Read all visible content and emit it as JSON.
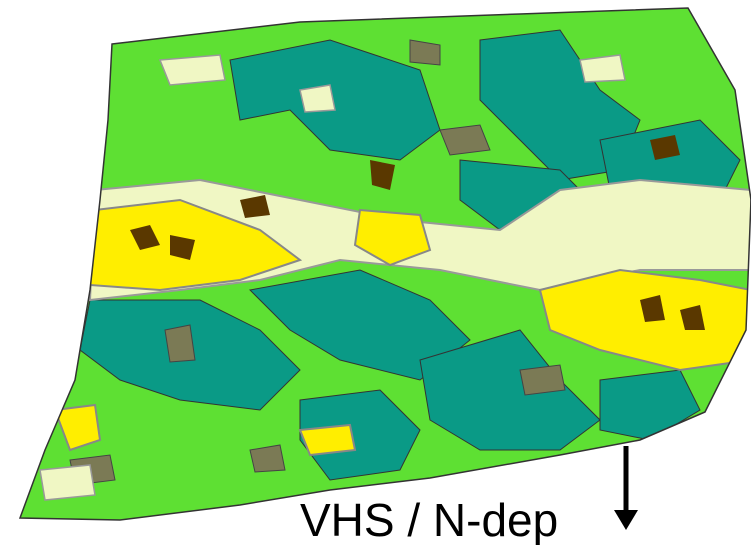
{
  "map": {
    "label": "VHS / N-dep"
  }
}
